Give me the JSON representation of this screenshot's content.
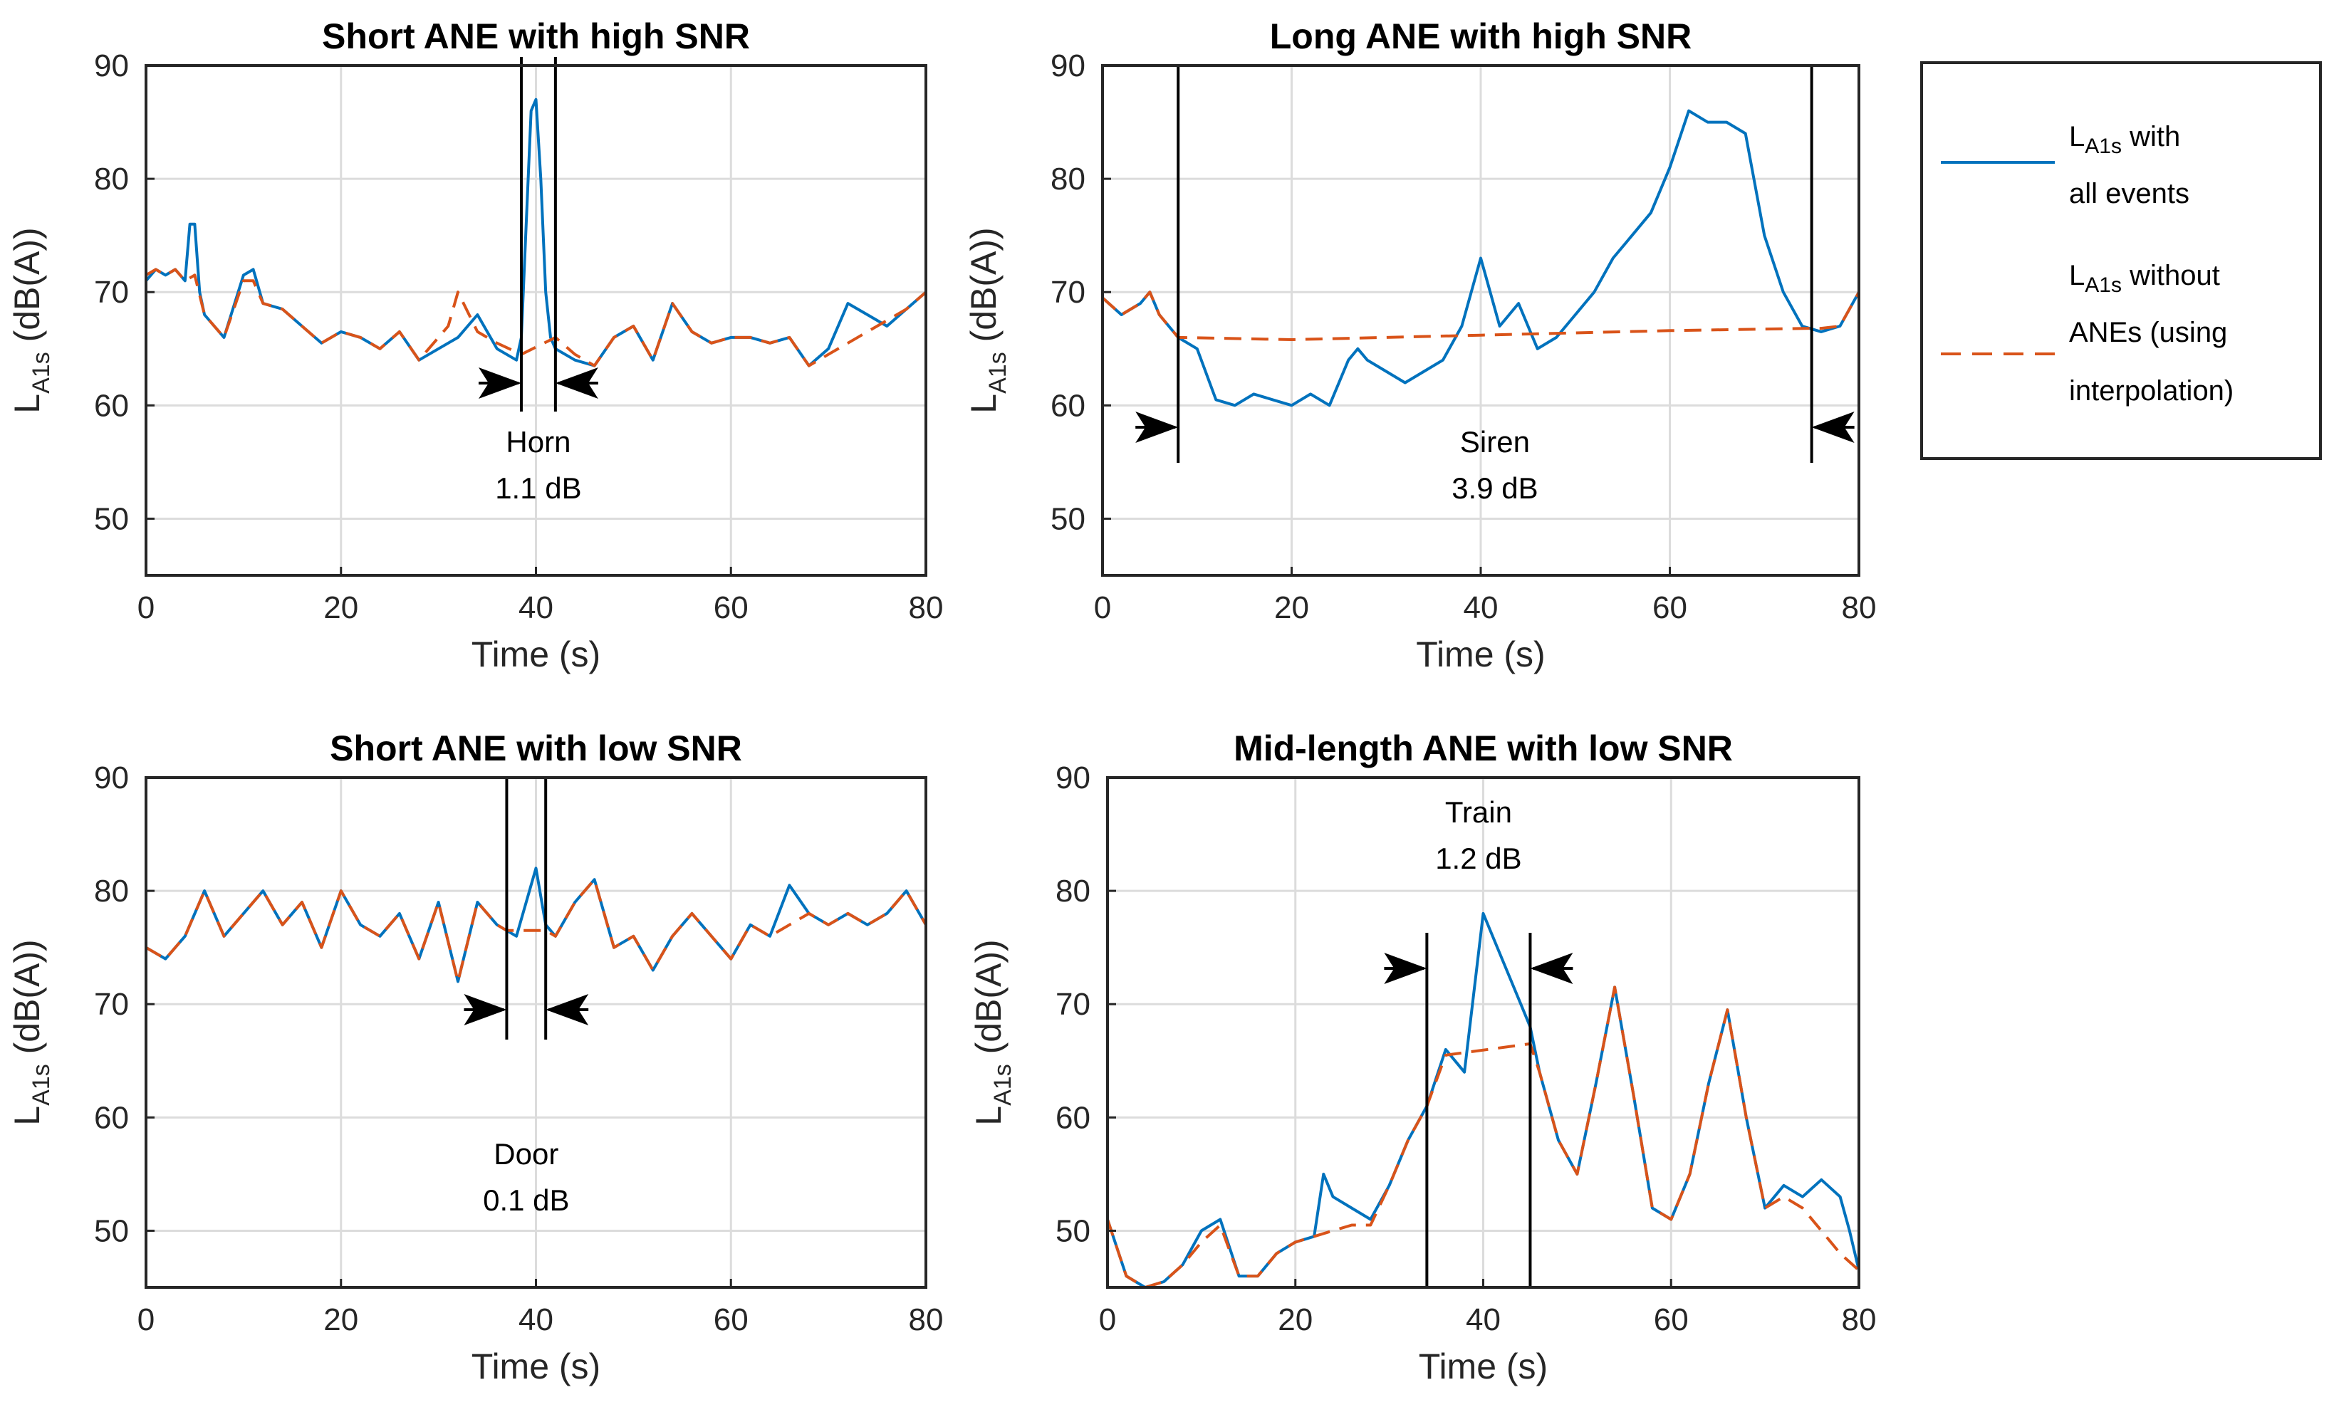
{
  "colors": {
    "with_events": "#0072BD",
    "without_anes": "#D95319",
    "grid": "#dcdcdc",
    "axis": "#262626",
    "marker": "#000000"
  },
  "legend": {
    "entry1": {
      "main": "L",
      "sub": "A1s",
      "rest": " with",
      "line2": "all events"
    },
    "entry2": {
      "main": "L",
      "sub": "A1s",
      "rest": " without",
      "line2": "ANEs (using",
      "line3": "interpolation)"
    }
  },
  "chart_data": [
    {
      "type": "line",
      "title": "Short ANE with high SNR",
      "xlabel": "Time (s)",
      "ylabel_main": "L",
      "ylabel_sub": "A1s",
      "ylabel_rest": " (dB(A))",
      "xlim": [
        0,
        80
      ],
      "ylim": [
        45,
        90
      ],
      "xticks": [
        0,
        20,
        40,
        60,
        80
      ],
      "yticks": [
        50,
        60,
        70,
        80
      ],
      "ytick_top": 90,
      "grid": true,
      "event": {
        "start": 38.5,
        "end": 42.0,
        "label": "Horn",
        "value": "1.1 dB"
      },
      "series": [
        {
          "name": "LA1s with all events",
          "style": "solid",
          "x": [
            0,
            1,
            2,
            3,
            4,
            4.5,
            5,
            5.5,
            6,
            8,
            10,
            11,
            12,
            14,
            16,
            18,
            20,
            22,
            24,
            26,
            28,
            30,
            32,
            34,
            36,
            38,
            38.5,
            39,
            39.5,
            40,
            40.5,
            41,
            41.5,
            42,
            44,
            46,
            48,
            50,
            52,
            54,
            56,
            58,
            60,
            62,
            64,
            66,
            68,
            70,
            72,
            74,
            76,
            78,
            80
          ],
          "y": [
            71,
            72,
            71.5,
            72,
            71,
            76,
            76,
            70,
            68,
            66,
            71.5,
            72,
            69,
            68.5,
            67,
            65.5,
            66.5,
            66,
            65,
            66.5,
            64,
            65,
            66,
            68,
            65,
            64,
            66,
            76,
            86,
            87,
            80,
            70,
            66,
            65,
            64,
            63.5,
            66,
            67,
            64,
            69,
            66.5,
            65.5,
            66,
            66,
            65.5,
            66,
            63.5,
            65,
            69,
            68,
            67,
            68.5,
            70
          ]
        },
        {
          "name": "LA1s without ANEs",
          "style": "dashed",
          "x": [
            0,
            1,
            2,
            3,
            4,
            5,
            6,
            8,
            10,
            11,
            12,
            14,
            16,
            18,
            20,
            22,
            24,
            26,
            28,
            30,
            31,
            32,
            34,
            36,
            38.5,
            42,
            44,
            46,
            48,
            50,
            52,
            54,
            56,
            58,
            60,
            62,
            64,
            66,
            68,
            70,
            72,
            74,
            76,
            78,
            80
          ],
          "y": [
            71.5,
            72,
            71.5,
            72,
            71,
            71.5,
            68,
            66,
            71,
            71,
            69,
            68.5,
            67,
            65.5,
            66.5,
            66,
            65,
            66.5,
            64,
            66,
            67,
            70,
            66.5,
            65.5,
            64.5,
            66,
            64.5,
            63.5,
            66,
            67,
            64,
            69,
            66.5,
            65.5,
            66,
            66,
            65.5,
            66,
            63.5,
            64.5,
            65.5,
            66.5,
            67.5,
            68.5,
            70
          ]
        }
      ]
    },
    {
      "type": "line",
      "title": "Long ANE with high SNR",
      "xlabel": "Time (s)",
      "ylabel_main": "L",
      "ylabel_sub": "A1s",
      "ylabel_rest": " (dB(A))",
      "xlim": [
        0,
        80
      ],
      "ylim": [
        45,
        90
      ],
      "xticks": [
        0,
        20,
        40,
        60,
        80
      ],
      "yticks": [
        50,
        60,
        70,
        80
      ],
      "ytick_top": 90,
      "grid": true,
      "event": {
        "start": 8.0,
        "end": 75.0,
        "label": "Siren",
        "value": "3.9 dB"
      },
      "series": [
        {
          "name": "LA1s with all events",
          "style": "solid",
          "x": [
            0,
            2,
            4,
            5,
            6,
            8,
            10,
            12,
            14,
            16,
            18,
            20,
            22,
            24,
            26,
            27,
            28,
            30,
            32,
            34,
            36,
            38,
            40,
            41,
            42,
            44,
            46,
            48,
            50,
            52,
            54,
            56,
            58,
            60,
            62,
            64,
            66,
            68,
            70,
            72,
            74,
            76,
            78,
            80
          ],
          "y": [
            69.5,
            68,
            69,
            70,
            68,
            66,
            65,
            60.5,
            60,
            61,
            60.5,
            60,
            61,
            60,
            64,
            65,
            64,
            63,
            62,
            63,
            64,
            67,
            73,
            70,
            67,
            69,
            65,
            66,
            68,
            70,
            73,
            75,
            77,
            81,
            86,
            85,
            85,
            84,
            75,
            70,
            67,
            66.5,
            67,
            70
          ]
        },
        {
          "name": "LA1s without ANEs",
          "style": "dashed",
          "x": [
            0,
            2,
            4,
            5,
            6,
            8,
            20,
            40,
            60,
            75,
            76,
            78,
            80
          ],
          "y": [
            69.5,
            68,
            69,
            70,
            68,
            66,
            65.8,
            66.2,
            66.6,
            66.8,
            66.8,
            67,
            70
          ]
        }
      ]
    },
    {
      "type": "line",
      "title": "Short ANE with low SNR",
      "xlabel": "Time (s)",
      "ylabel_main": "L",
      "ylabel_sub": "A1s",
      "ylabel_rest": " (dB(A))",
      "xlim": [
        0,
        80
      ],
      "ylim": [
        45,
        90
      ],
      "xticks": [
        0,
        20,
        40,
        60,
        80
      ],
      "yticks": [
        50,
        60,
        70,
        80
      ],
      "ytick_top": 90,
      "grid": true,
      "event": {
        "start": 37.0,
        "end": 41.0,
        "label": "Door",
        "value": "0.1 dB"
      },
      "series": [
        {
          "name": "LA1s with all events",
          "style": "solid",
          "x": [
            0,
            2,
            4,
            6,
            8,
            10,
            12,
            14,
            16,
            18,
            20,
            22,
            24,
            26,
            28,
            30,
            32,
            34,
            36,
            38,
            40,
            41,
            42,
            44,
            46,
            48,
            50,
            52,
            54,
            56,
            58,
            60,
            62,
            64,
            66,
            68,
            70,
            72,
            74,
            76,
            78,
            80
          ],
          "y": [
            75,
            74,
            76,
            80,
            76,
            78,
            80,
            77,
            79,
            75,
            80,
            77,
            76,
            78,
            74,
            79,
            72,
            79,
            77,
            76,
            82,
            77,
            76,
            79,
            81,
            75,
            76,
            73,
            76,
            78,
            76,
            74,
            77,
            76,
            80.5,
            78,
            77,
            78,
            77,
            78,
            80,
            77
          ]
        },
        {
          "name": "LA1s without ANEs",
          "style": "dashed",
          "x": [
            0,
            2,
            4,
            6,
            8,
            10,
            12,
            14,
            16,
            18,
            20,
            22,
            24,
            26,
            28,
            30,
            32,
            34,
            36,
            37,
            41,
            42,
            44,
            46,
            48,
            50,
            52,
            54,
            56,
            58,
            60,
            62,
            64,
            66,
            68,
            70,
            72,
            74,
            76,
            78,
            80
          ],
          "y": [
            75,
            74,
            76,
            80,
            76,
            78,
            80,
            77,
            79,
            75,
            80,
            77,
            76,
            78,
            74,
            79,
            72,
            79,
            77,
            76.5,
            76.5,
            76,
            79,
            81,
            75,
            76,
            73,
            76,
            78,
            76,
            74,
            77,
            76,
            77,
            78,
            77,
            78,
            77,
            78,
            80,
            77
          ]
        }
      ]
    },
    {
      "type": "line",
      "title": "Mid-length ANE with low SNR",
      "xlabel": "Time (s)",
      "ylabel_main": "L",
      "ylabel_sub": "A1s",
      "ylabel_rest": " (dB(A))",
      "xlim": [
        0,
        80
      ],
      "ylim": [
        45,
        90
      ],
      "xticks": [
        0,
        20,
        40,
        60,
        80
      ],
      "yticks": [
        50,
        60,
        70,
        80
      ],
      "ytick_top": 90,
      "grid": true,
      "event": {
        "start": 34.0,
        "end": 45.0,
        "label": "Train",
        "value": "1.2 dB"
      },
      "series": [
        {
          "name": "LA1s with all events",
          "style": "solid",
          "x": [
            0,
            2,
            4,
            6,
            8,
            10,
            12,
            14,
            16,
            18,
            20,
            22,
            23,
            24,
            26,
            28,
            30,
            32,
            34,
            36,
            38,
            40,
            42,
            44,
            45,
            46,
            48,
            50,
            52,
            54,
            56,
            58,
            60,
            62,
            64,
            66,
            68,
            70,
            72,
            74,
            76,
            78,
            79,
            80
          ],
          "y": [
            51,
            46,
            45,
            45.5,
            47,
            50,
            51,
            46,
            46,
            48,
            49,
            49.5,
            55,
            53,
            52,
            51,
            54,
            58,
            61,
            66,
            64,
            78,
            74,
            70,
            68,
            64,
            58,
            55,
            63,
            71.5,
            62,
            52,
            51,
            55,
            63,
            69.5,
            60,
            52,
            54,
            53,
            54.5,
            53,
            50,
            46.5
          ]
        },
        {
          "name": "LA1s without ANEs",
          "style": "dashed",
          "x": [
            0,
            2,
            4,
            6,
            8,
            10,
            12,
            14,
            16,
            18,
            20,
            22,
            24,
            26,
            28,
            30,
            32,
            34,
            36,
            45,
            46,
            48,
            50,
            52,
            54,
            56,
            58,
            60,
            62,
            64,
            66,
            68,
            70,
            72,
            74,
            76,
            78,
            80
          ],
          "y": [
            51,
            46,
            45,
            45.5,
            47,
            49,
            50.5,
            46,
            46,
            48,
            49,
            49.5,
            50,
            50.5,
            50.5,
            54,
            58,
            61,
            65.5,
            66.5,
            64,
            58,
            55,
            63,
            71.5,
            62,
            52,
            51,
            55,
            63,
            69.5,
            60,
            52,
            53,
            52,
            50,
            48,
            46.5
          ]
        }
      ]
    }
  ]
}
